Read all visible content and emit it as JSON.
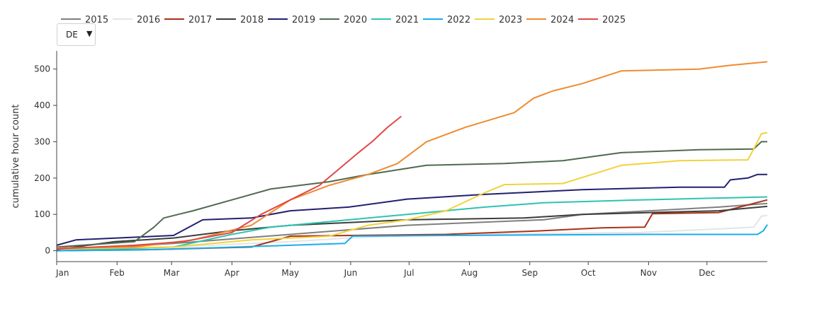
{
  "region_selector": {
    "value": "DE"
  },
  "chart_data": {
    "type": "line",
    "title": "",
    "xlabel": "",
    "ylabel": "cumulative hour count",
    "x_ticks": [
      "Jan",
      "Feb",
      "Mar",
      "Apr",
      "May",
      "Jun",
      "Jul",
      "Aug",
      "Sep",
      "Oct",
      "Nov",
      "Dec"
    ],
    "x_tick_days": [
      0,
      31,
      59,
      90,
      120,
      151,
      181,
      212,
      243,
      273,
      304,
      334
    ],
    "xlim": [
      0,
      365
    ],
    "y_ticks": [
      0,
      100,
      200,
      300,
      400,
      500
    ],
    "ylim": [
      -30,
      550
    ],
    "grid": false,
    "legend": "top-left, horizontal",
    "series": [
      {
        "name": "2015",
        "color": "#7f7f7f",
        "points": [
          [
            0,
            5
          ],
          [
            30,
            10
          ],
          [
            60,
            20
          ],
          [
            120,
            45
          ],
          [
            180,
            70
          ],
          [
            250,
            85
          ],
          [
            270,
            100
          ],
          [
            340,
            120
          ],
          [
            365,
            130
          ]
        ]
      },
      {
        "name": "2016",
        "color": "#e5e5e5",
        "points": [
          [
            0,
            2
          ],
          [
            60,
            10
          ],
          [
            120,
            25
          ],
          [
            150,
            35
          ],
          [
            200,
            45
          ],
          [
            300,
            50
          ],
          [
            340,
            60
          ],
          [
            358,
            65
          ],
          [
            362,
            95
          ],
          [
            365,
            97
          ]
        ]
      },
      {
        "name": "2017",
        "color": "#a8321a",
        "points": [
          [
            0,
            0
          ],
          [
            50,
            3
          ],
          [
            100,
            10
          ],
          [
            120,
            40
          ],
          [
            200,
            45
          ],
          [
            250,
            55
          ],
          [
            280,
            63
          ],
          [
            302,
            65
          ],
          [
            306,
            102
          ],
          [
            340,
            105
          ],
          [
            365,
            140
          ]
        ]
      },
      {
        "name": "2018",
        "color": "#3a3f3a",
        "points": [
          [
            0,
            3
          ],
          [
            30,
            25
          ],
          [
            60,
            35
          ],
          [
            90,
            55
          ],
          [
            120,
            70
          ],
          [
            180,
            85
          ],
          [
            240,
            90
          ],
          [
            270,
            100
          ],
          [
            340,
            110
          ],
          [
            365,
            122
          ]
        ]
      },
      {
        "name": "2019",
        "color": "#232070",
        "points": [
          [
            0,
            15
          ],
          [
            10,
            30
          ],
          [
            60,
            42
          ],
          [
            75,
            85
          ],
          [
            100,
            90
          ],
          [
            120,
            110
          ],
          [
            150,
            120
          ],
          [
            180,
            142
          ],
          [
            220,
            155
          ],
          [
            270,
            168
          ],
          [
            320,
            175
          ],
          [
            343,
            175
          ],
          [
            346,
            195
          ],
          [
            355,
            200
          ],
          [
            360,
            210
          ],
          [
            365,
            210
          ]
        ]
      },
      {
        "name": "2020",
        "color": "#4f6b4f",
        "points": [
          [
            0,
            10
          ],
          [
            40,
            25
          ],
          [
            50,
            65
          ],
          [
            55,
            90
          ],
          [
            70,
            110
          ],
          [
            90,
            140
          ],
          [
            110,
            170
          ],
          [
            140,
            190
          ],
          [
            160,
            210
          ],
          [
            190,
            235
          ],
          [
            230,
            240
          ],
          [
            260,
            248
          ],
          [
            290,
            270
          ],
          [
            330,
            278
          ],
          [
            358,
            280
          ],
          [
            362,
            300
          ],
          [
            365,
            300
          ]
        ]
      },
      {
        "name": "2021",
        "color": "#2cc4b0",
        "points": [
          [
            0,
            0
          ],
          [
            60,
            10
          ],
          [
            90,
            45
          ],
          [
            110,
            65
          ],
          [
            150,
            85
          ],
          [
            180,
            100
          ],
          [
            220,
            120
          ],
          [
            250,
            132
          ],
          [
            300,
            140
          ],
          [
            365,
            148
          ]
        ]
      },
      {
        "name": "2022",
        "color": "#1aaee8",
        "points": [
          [
            0,
            0
          ],
          [
            40,
            2
          ],
          [
            80,
            8
          ],
          [
            120,
            15
          ],
          [
            148,
            20
          ],
          [
            152,
            40
          ],
          [
            200,
            42
          ],
          [
            300,
            45
          ],
          [
            360,
            45
          ],
          [
            363,
            55
          ],
          [
            365,
            72
          ]
        ]
      },
      {
        "name": "2023",
        "color": "#f2d23a",
        "points": [
          [
            0,
            5
          ],
          [
            60,
            10
          ],
          [
            100,
            30
          ],
          [
            140,
            40
          ],
          [
            160,
            70
          ],
          [
            180,
            85
          ],
          [
            200,
            110
          ],
          [
            220,
            160
          ],
          [
            230,
            182
          ],
          [
            260,
            185
          ],
          [
            275,
            210
          ],
          [
            290,
            235
          ],
          [
            320,
            248
          ],
          [
            355,
            250
          ],
          [
            358,
            280
          ],
          [
            362,
            322
          ],
          [
            365,
            325
          ]
        ]
      },
      {
        "name": "2024",
        "color": "#f08a30",
        "points": [
          [
            0,
            8
          ],
          [
            40,
            10
          ],
          [
            70,
            30
          ],
          [
            100,
            70
          ],
          [
            120,
            140
          ],
          [
            140,
            180
          ],
          [
            160,
            210
          ],
          [
            175,
            240
          ],
          [
            190,
            300
          ],
          [
            210,
            340
          ],
          [
            235,
            380
          ],
          [
            245,
            420
          ],
          [
            255,
            440
          ],
          [
            270,
            460
          ],
          [
            290,
            495
          ],
          [
            330,
            500
          ],
          [
            345,
            510
          ],
          [
            365,
            520
          ]
        ]
      },
      {
        "name": "2025",
        "color": "#e04848",
        "points": [
          [
            0,
            5
          ],
          [
            20,
            10
          ],
          [
            40,
            15
          ],
          [
            65,
            25
          ],
          [
            90,
            50
          ],
          [
            105,
            100
          ],
          [
            120,
            140
          ],
          [
            135,
            180
          ],
          [
            145,
            225
          ],
          [
            155,
            270
          ],
          [
            162,
            300
          ],
          [
            170,
            340
          ],
          [
            177,
            370
          ]
        ]
      }
    ]
  }
}
